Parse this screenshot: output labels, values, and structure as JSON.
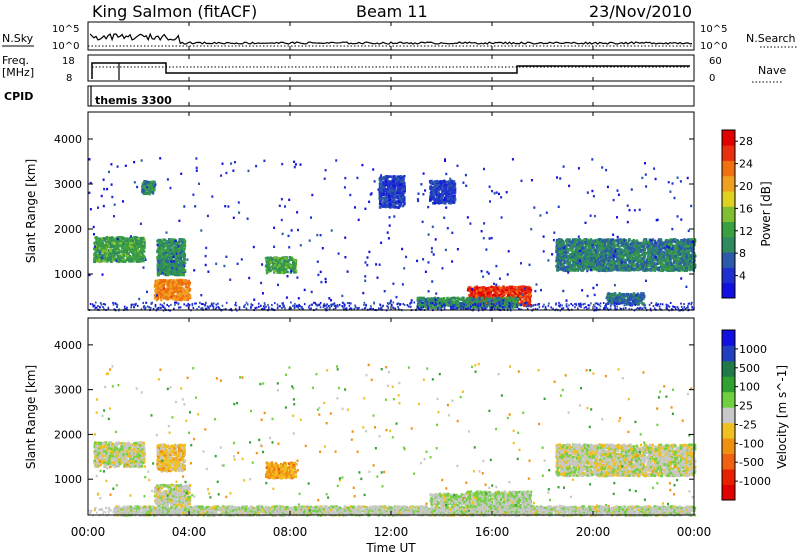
{
  "header": {
    "station": "King Salmon (fitACF)",
    "beam": "Beam 11",
    "date": "23/Nov/2010"
  },
  "nsky_panel": {
    "left_label": "N.Sky",
    "right_label": "N.Search",
    "left_ticks": [
      "10^5",
      "10^0"
    ],
    "right_ticks": [
      "10^5",
      "10^0"
    ]
  },
  "freq_panel": {
    "left_label_1": "Freq.",
    "left_label_2": "[MHz]",
    "left_ticks": [
      "18",
      "8"
    ],
    "right_label": "Nave",
    "right_ticks": [
      "60",
      "0"
    ]
  },
  "cpid_panel": {
    "label": "CPID",
    "program": "themis 3300"
  },
  "x_axis": {
    "label": "Time UT",
    "ticks": [
      "00:00",
      "04:00",
      "08:00",
      "12:00",
      "16:00",
      "20:00",
      "00:00"
    ]
  },
  "colors": {
    "power": [
      "#1010e0",
      "#2030d0",
      "#2a5aa8",
      "#2f8a60",
      "#3aa040",
      "#80c030",
      "#e0d020",
      "#f0a020",
      "#f07010",
      "#e83010",
      "#e00000"
    ],
    "velocity": [
      "#1010e0",
      "#2040c0",
      "#207a48",
      "#30a030",
      "#70d040",
      "#c8c8c8",
      "#f0c020",
      "#f09010",
      "#f06010",
      "#e82000",
      "#e00000"
    ]
  },
  "chart_data": [
    {
      "type": "heatmap",
      "title": "",
      "xlabel": "",
      "ylabel": "Slant Range [km]",
      "y_ticks": [
        "1000",
        "2000",
        "3000",
        "4000"
      ],
      "ylim": [
        200,
        4600
      ],
      "xlim": [
        0,
        24
      ],
      "colorbar": {
        "label": "Power [dB]",
        "ticks": [
          "4",
          "8",
          "12",
          "16",
          "20",
          "24",
          "28"
        ],
        "range": [
          0,
          30
        ]
      },
      "regions": [
        {
          "x": [
            0.2,
            2.2
          ],
          "y": [
            1300,
            1850
          ],
          "value": 12
        },
        {
          "x": [
            2.6,
            4.0
          ],
          "y": [
            450,
            900
          ],
          "value": 22
        },
        {
          "x": [
            2.7,
            3.8
          ],
          "y": [
            1000,
            1800
          ],
          "value": 10
        },
        {
          "x": [
            2.1,
            2.6
          ],
          "y": [
            2800,
            3100
          ],
          "value": 10
        },
        {
          "x": [
            7.0,
            8.2
          ],
          "y": [
            1050,
            1400
          ],
          "value": 12
        },
        {
          "x": [
            15.0,
            17.5
          ],
          "y": [
            320,
            750
          ],
          "value": 26
        },
        {
          "x": [
            13.0,
            17.0
          ],
          "y": [
            280,
            500
          ],
          "value": 10
        },
        {
          "x": [
            18.5,
            24.0
          ],
          "y": [
            1100,
            1800
          ],
          "value": 9
        },
        {
          "x": [
            20.5,
            22.0
          ],
          "y": [
            350,
            600
          ],
          "value": 8
        },
        {
          "x": [
            11.5,
            12.5
          ],
          "y": [
            2500,
            3200
          ],
          "value": 5
        },
        {
          "x": [
            13.5,
            14.5
          ],
          "y": [
            2600,
            3100
          ],
          "value": 5
        }
      ]
    },
    {
      "type": "heatmap",
      "title": "",
      "xlabel": "Time UT",
      "ylabel": "Slant Range [km]",
      "y_ticks": [
        "1000",
        "2000",
        "3000",
        "4000"
      ],
      "ylim": [
        200,
        4600
      ],
      "xlim": [
        0,
        24
      ],
      "colorbar": {
        "label": "Velocity [m s^-1]",
        "ticks": [
          "1000",
          "500",
          "100",
          "25",
          "-25",
          "-100",
          "-500",
          "-1000"
        ],
        "range": [
          -1000,
          1000
        ]
      },
      "regions": [
        {
          "x": [
            0.2,
            2.2
          ],
          "y": [
            1300,
            1850
          ],
          "value": 0
        },
        {
          "x": [
            2.6,
            4.0
          ],
          "y": [
            450,
            900
          ],
          "value": 0
        },
        {
          "x": [
            2.7,
            3.8
          ],
          "y": [
            1200,
            1800
          ],
          "value": -150
        },
        {
          "x": [
            7.0,
            8.2
          ],
          "y": [
            1050,
            1400
          ],
          "value": -300
        },
        {
          "x": [
            15.0,
            17.5
          ],
          "y": [
            320,
            750
          ],
          "value": 80
        },
        {
          "x": [
            13.5,
            15.0
          ],
          "y": [
            450,
            700
          ],
          "value": 60
        },
        {
          "x": [
            1.0,
            24.0
          ],
          "y": [
            220,
            420
          ],
          "value": 40
        },
        {
          "x": [
            18.5,
            24.0
          ],
          "y": [
            1100,
            1800
          ],
          "value": 0
        }
      ]
    }
  ]
}
